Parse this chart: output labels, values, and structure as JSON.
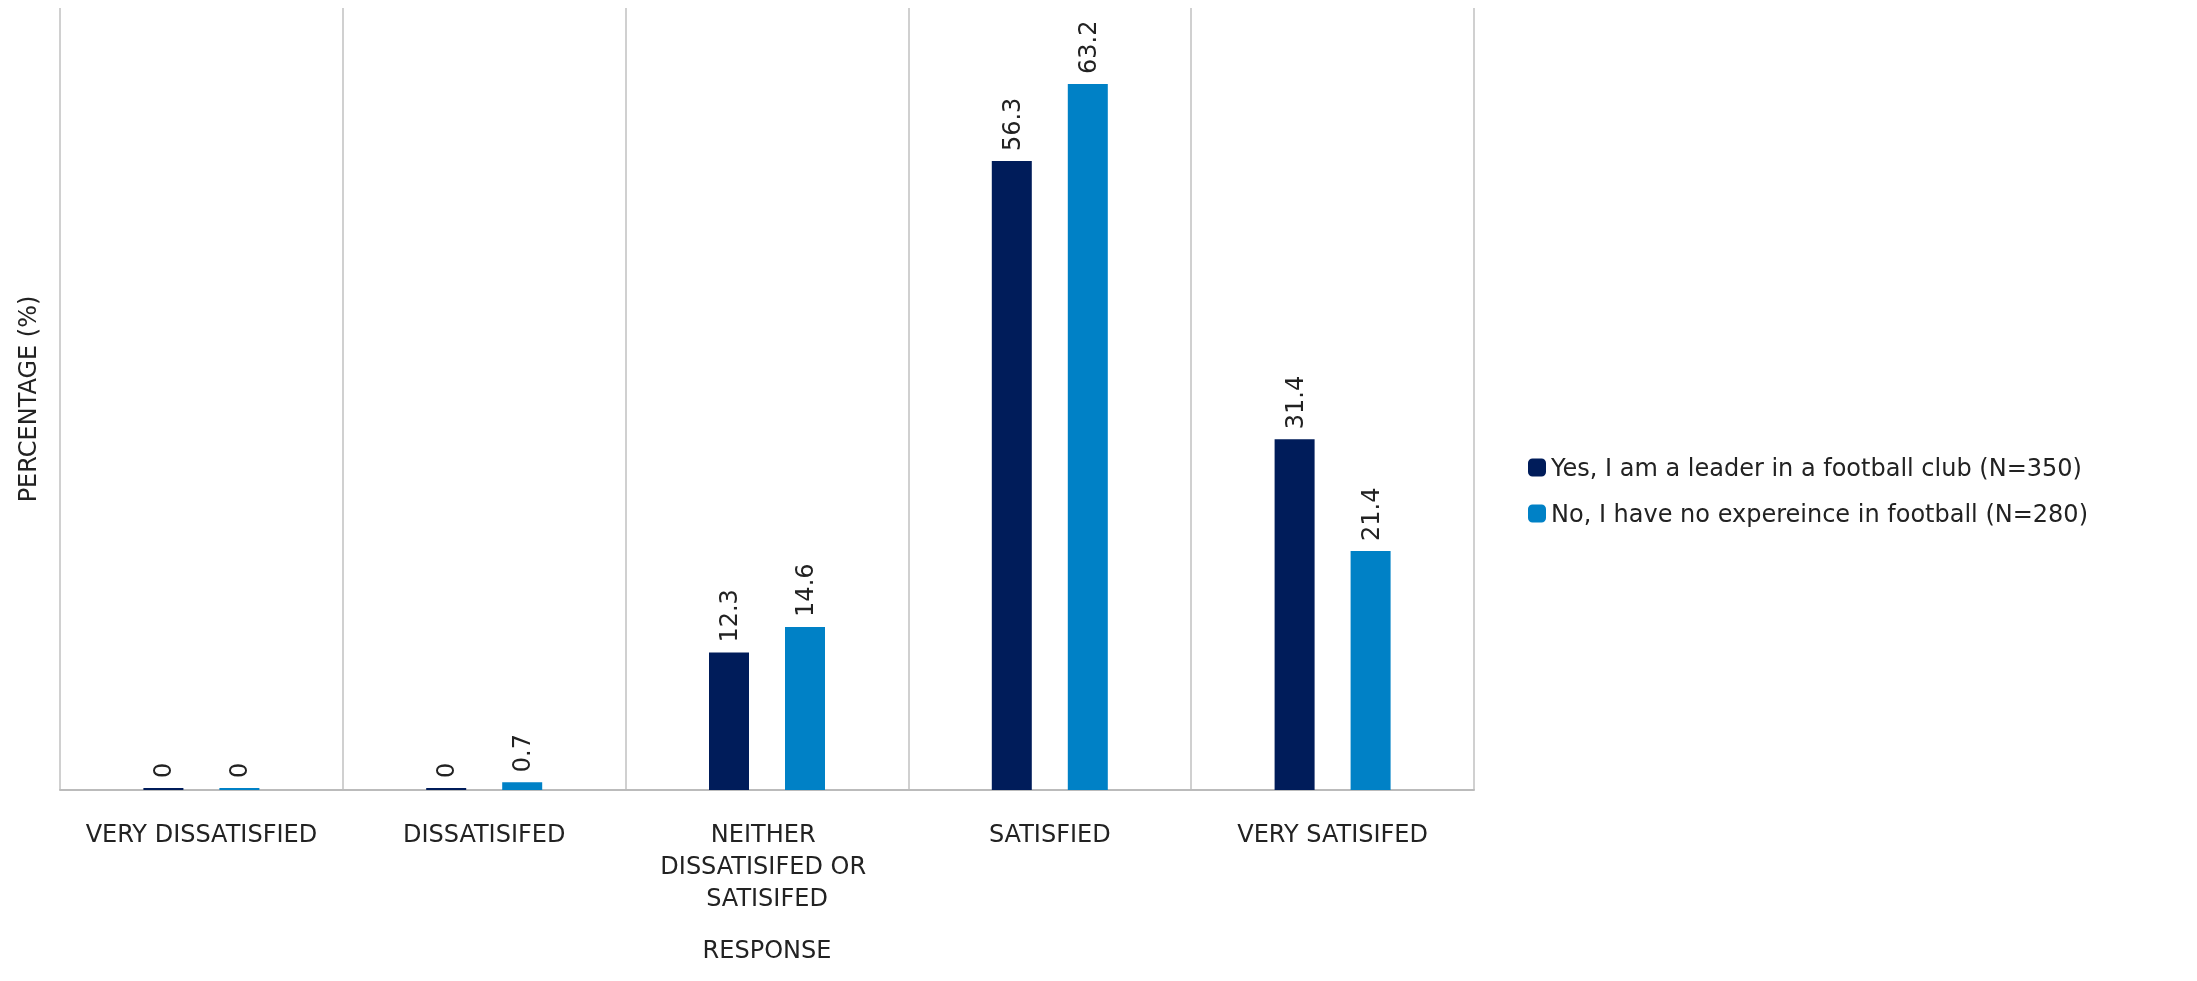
{
  "chart_data": {
    "type": "bar",
    "xlabel": "RESPONSE",
    "ylabel": "PERCENTAGE (%)",
    "categories": [
      "VERY DISSATISFIED",
      "DISSATISIFED",
      "NEITHER DISSATISIFED OR SATISIFED",
      "SATISFIED",
      "VERY SATISIFED"
    ],
    "series": [
      {
        "name": "Yes, I am a leader in a football club (N=350)",
        "color": "#001c5a",
        "values": [
          0,
          0,
          12.3,
          56.3,
          31.4
        ]
      },
      {
        "name": "No, I have no expereince in football (N=280)",
        "color": "#0081c6",
        "values": [
          0,
          0.7,
          14.6,
          63.2,
          21.4
        ]
      }
    ],
    "data_labels": true,
    "grid": "x",
    "legend": "right"
  }
}
